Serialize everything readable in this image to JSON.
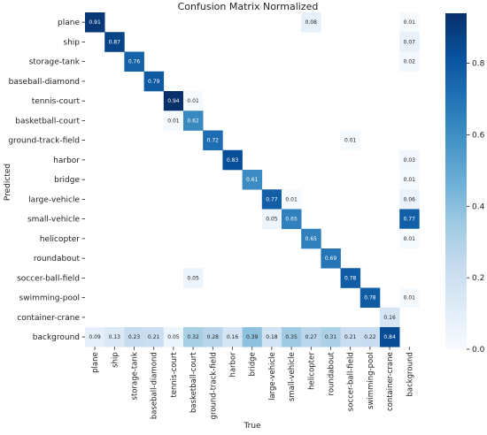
{
  "chart_data": {
    "type": "heatmap",
    "title": "Confusion Matrix Normalized",
    "xlabel": "True",
    "ylabel": "Predicted",
    "x_categories": [
      "plane",
      "ship",
      "storage-tank",
      "baseball-diamond",
      "tennis-court",
      "basketball-court",
      "ground-track-field",
      "harbor",
      "bridge",
      "large-vehicle",
      "small-vehicle",
      "helicopter",
      "roundabout",
      "soccer-ball-field",
      "swimming-pool",
      "container-crane",
      "background"
    ],
    "y_categories": [
      "plane",
      "ship",
      "storage-tank",
      "baseball-diamond",
      "tennis-court",
      "basketball-court",
      "ground-track-field",
      "harbor",
      "bridge",
      "large-vehicle",
      "small-vehicle",
      "helicopter",
      "roundabout",
      "soccer-ball-field",
      "swimming-pool",
      "container-crane",
      "background"
    ],
    "values": [
      [
        0.91,
        null,
        null,
        null,
        null,
        null,
        null,
        null,
        null,
        null,
        null,
        0.08,
        null,
        null,
        null,
        null,
        0.01
      ],
      [
        null,
        0.87,
        null,
        null,
        null,
        null,
        null,
        null,
        null,
        null,
        null,
        null,
        null,
        null,
        null,
        null,
        0.07
      ],
      [
        null,
        null,
        0.76,
        null,
        null,
        null,
        null,
        null,
        null,
        null,
        null,
        null,
        null,
        null,
        null,
        null,
        0.02
      ],
      [
        null,
        null,
        null,
        0.79,
        null,
        null,
        null,
        null,
        null,
        null,
        null,
        null,
        null,
        null,
        null,
        null,
        null
      ],
      [
        null,
        null,
        null,
        null,
        0.94,
        0.01,
        null,
        null,
        null,
        null,
        null,
        null,
        null,
        null,
        null,
        null,
        null
      ],
      [
        null,
        null,
        null,
        null,
        0.01,
        0.62,
        null,
        null,
        null,
        null,
        null,
        null,
        null,
        null,
        null,
        null,
        null
      ],
      [
        null,
        null,
        null,
        null,
        null,
        null,
        0.72,
        null,
        null,
        null,
        null,
        null,
        null,
        0.01,
        null,
        null,
        null
      ],
      [
        null,
        null,
        null,
        null,
        null,
        null,
        null,
        0.83,
        null,
        null,
        null,
        null,
        null,
        null,
        null,
        null,
        0.03
      ],
      [
        null,
        null,
        null,
        null,
        null,
        null,
        null,
        null,
        0.61,
        null,
        null,
        null,
        null,
        null,
        null,
        null,
        0.01
      ],
      [
        null,
        null,
        null,
        null,
        null,
        null,
        null,
        null,
        null,
        0.77,
        0.01,
        null,
        null,
        null,
        null,
        null,
        0.06
      ],
      [
        null,
        null,
        null,
        null,
        null,
        null,
        null,
        null,
        null,
        0.05,
        0.65,
        null,
        null,
        null,
        null,
        null,
        0.77
      ],
      [
        null,
        null,
        null,
        null,
        null,
        null,
        null,
        null,
        null,
        null,
        null,
        0.65,
        null,
        null,
        null,
        null,
        0.01
      ],
      [
        null,
        null,
        null,
        null,
        null,
        null,
        null,
        null,
        null,
        null,
        null,
        null,
        0.69,
        null,
        null,
        null,
        null
      ],
      [
        null,
        null,
        null,
        null,
        null,
        0.05,
        null,
        null,
        null,
        null,
        null,
        null,
        null,
        0.78,
        null,
        null,
        null
      ],
      [
        null,
        null,
        null,
        null,
        null,
        null,
        null,
        null,
        null,
        null,
        null,
        null,
        null,
        null,
        0.78,
        null,
        0.01
      ],
      [
        null,
        null,
        null,
        null,
        null,
        null,
        null,
        null,
        null,
        null,
        null,
        null,
        null,
        null,
        null,
        0.16,
        null
      ],
      [
        0.09,
        0.13,
        0.23,
        0.21,
        0.05,
        0.32,
        0.28,
        0.16,
        0.39,
        0.18,
        0.35,
        0.27,
        0.31,
        0.21,
        0.22,
        0.84,
        null
      ]
    ],
    "colorbar": {
      "min": 0.0,
      "max": 0.94,
      "ticks": [
        "0.0",
        "0.2",
        "0.4",
        "0.6",
        "0.8"
      ],
      "colormap": "Blues"
    }
  }
}
